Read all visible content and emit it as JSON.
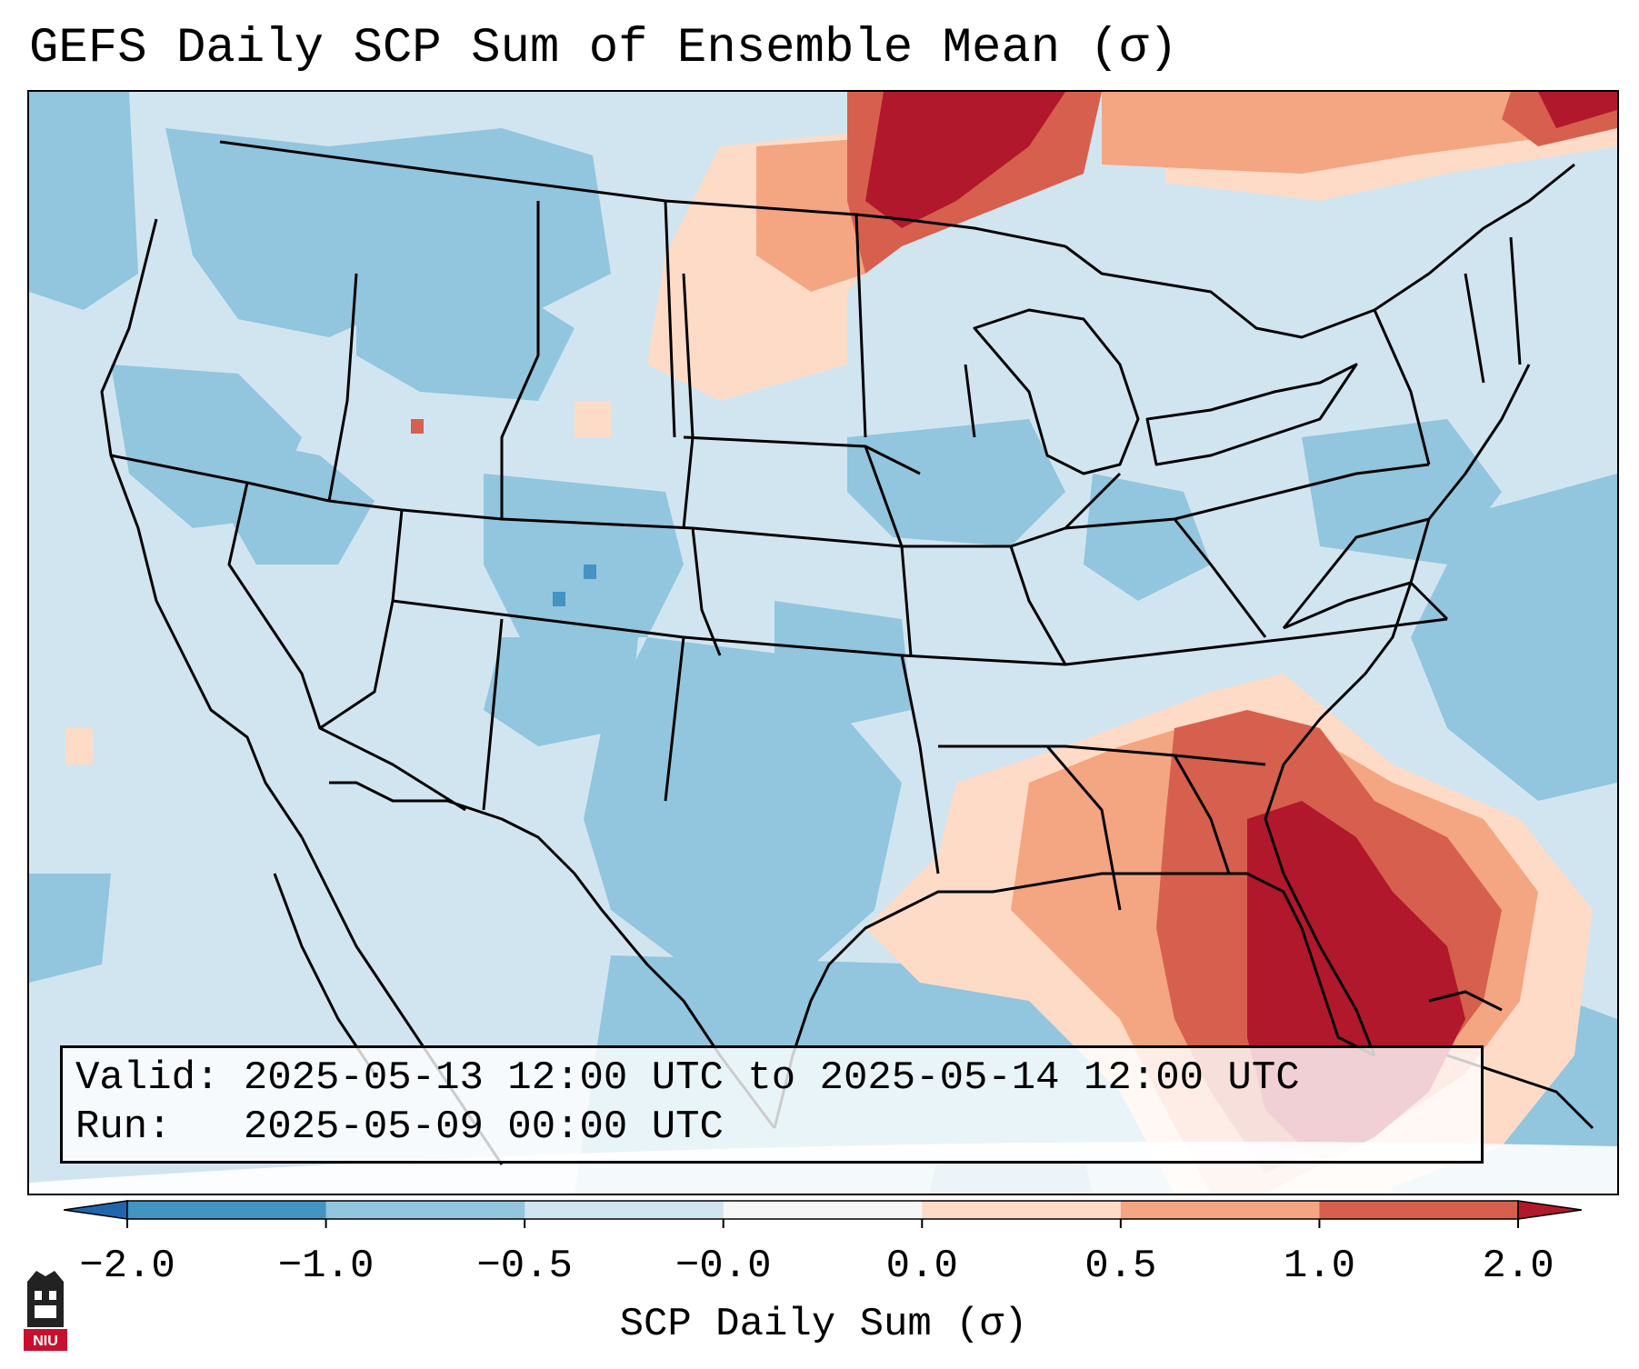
{
  "title": "GEFS Daily SCP Sum of Ensemble Mean (σ)",
  "valid_box": {
    "valid_label": "Valid:",
    "valid_value": "2025-05-13 12:00 UTC to 2025-05-14 12:00 UTC",
    "run_label": "Run:",
    "run_value": "2025-05-09 00:00 UTC"
  },
  "colorbar": {
    "label": "SCP Daily Sum (σ)",
    "ticks": [
      "−2.0",
      "−1.0",
      "−0.5",
      "−0.0",
      "0.0",
      "0.5",
      "1.0",
      "2.0"
    ],
    "bins": [
      {
        "from": "−2.0",
        "to": "−1.0",
        "color": "#4393c3"
      },
      {
        "from": "−1.0",
        "to": "−0.5",
        "color": "#92c5de"
      },
      {
        "from": "−0.5",
        "to": "−0.0",
        "color": "#d1e5f0"
      },
      {
        "from": "−0.0",
        "to": "0.0",
        "color": "#f7f7f7"
      },
      {
        "from": "0.0",
        "to": "0.5",
        "color": "#fddbc7"
      },
      {
        "from": "0.5",
        "to": "1.0",
        "color": "#f4a582"
      },
      {
        "from": "1.0",
        "to": "2.0",
        "color": "#d6604d"
      }
    ],
    "under_color": "#2166ac",
    "over_color": "#b2182b",
    "extend": "both"
  },
  "map": {
    "projection": "Lambert conformal, CONUS",
    "background_color": "#d1e5f0",
    "boundaries": [
      "states",
      "coastlines",
      "countries"
    ],
    "high_anomaly_regions": [
      "southeast",
      "florida",
      "northern-plains-canada",
      "gulf-of-mexico"
    ]
  },
  "logo": {
    "text": "NIU",
    "colors": {
      "tower": "#222222",
      "badge": "#c8102e"
    }
  }
}
